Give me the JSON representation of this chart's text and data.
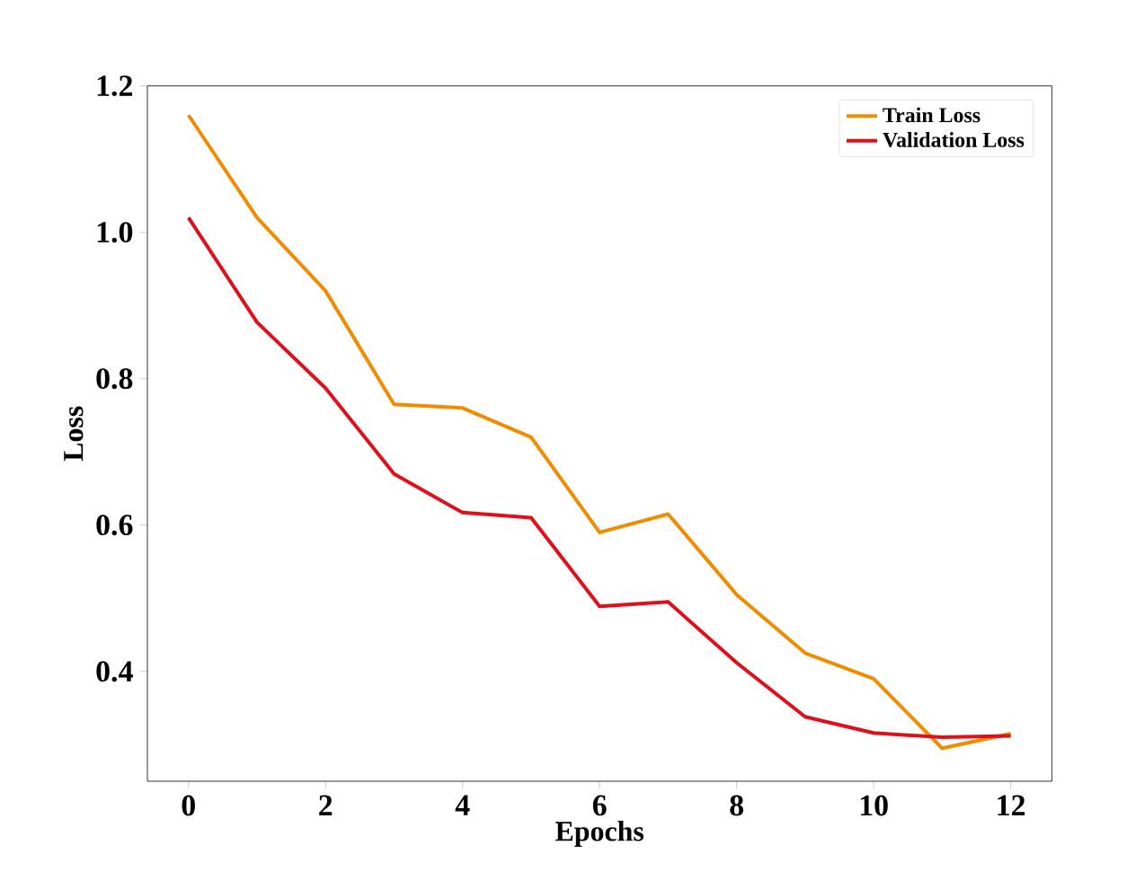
{
  "chart_data": {
    "type": "line",
    "xlabel": "Epochs",
    "ylabel": "Loss",
    "x": [
      0,
      1,
      2,
      3,
      4,
      5,
      6,
      7,
      8,
      9,
      10,
      11,
      12
    ],
    "series": [
      {
        "name": "Train Loss",
        "color": "#f08c00",
        "values": [
          1.16,
          1.02,
          0.92,
          0.765,
          0.76,
          0.72,
          0.59,
          0.615,
          0.505,
          0.425,
          0.39,
          0.295,
          0.315
        ]
      },
      {
        "name": "Validation Loss",
        "color": "#e0101a",
        "values": [
          1.02,
          0.877,
          0.787,
          0.67,
          0.617,
          0.61,
          0.489,
          0.495,
          0.412,
          0.338,
          0.316,
          0.31,
          0.312
        ]
      }
    ],
    "xlim": [
      -0.6,
      12.6
    ],
    "ylim": [
      0.25,
      1.2
    ],
    "xticks": [
      0,
      2,
      4,
      6,
      8,
      10,
      12
    ],
    "yticks": [
      0.4,
      0.6,
      0.8,
      {
        "value": 1.0,
        "label": "1.0"
      },
      1.2
    ],
    "grid": false,
    "legend": "top right",
    "marker": "none",
    "line_style": "solid"
  }
}
